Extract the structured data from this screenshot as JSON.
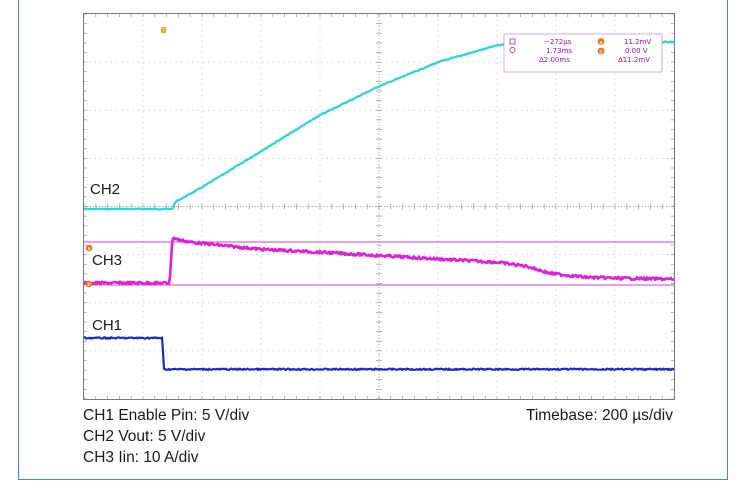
{
  "chart_data": {
    "type": "line",
    "title": "",
    "xlabel": "",
    "ylabel": "",
    "x_divisions": 10,
    "y_divisions": 8,
    "grid": true,
    "timebase": "Timebase: 200 µs/div",
    "channel_scales": [
      "CH1 Enable Pin: 5 V/div",
      "CH2 Vout: 5 V/div",
      "CH3 Iin: 10 A/div"
    ],
    "series": [
      {
        "name": "CH2",
        "color": "#2ad4d8",
        "x": [
          0,
          1.5,
          1.55,
          2.0,
          3.0,
          4.0,
          5.0,
          6.0,
          7.0,
          7.4,
          8.0,
          9.0,
          10.0
        ],
        "y": [
          0,
          0,
          0.15,
          0.45,
          1.2,
          1.95,
          2.55,
          3.05,
          3.4,
          3.47,
          3.47,
          3.47,
          3.47
        ]
      },
      {
        "name": "CH3",
        "color": "#e020d8",
        "x": [
          0,
          1.45,
          1.5,
          1.6,
          1.8,
          2.5,
          3.0,
          4.0,
          5.0,
          6.0,
          7.0,
          7.5,
          7.9,
          8.5,
          9.0,
          10.0
        ],
        "y": [
          0,
          0,
          0.95,
          0.9,
          0.85,
          0.76,
          0.7,
          0.64,
          0.57,
          0.5,
          0.43,
          0.35,
          0.2,
          0.12,
          0.1,
          0.08
        ]
      },
      {
        "name": "CH1",
        "color": "#1a2fc0",
        "x": [
          0,
          1.33,
          1.35,
          10.0
        ],
        "y": [
          0,
          0,
          -0.65,
          -0.65
        ]
      }
    ],
    "channel_labels": [
      "CH2",
      "CH3",
      "CH1"
    ],
    "measurements": {
      "cursor1_time": "−272µs",
      "cursor2_time": "1.73ms",
      "delta_time": "Δ2.00ms",
      "cursor_a_value": "11.2mV",
      "cursor_b_value": "0.00 V",
      "delta_value": "Δ11.2mV"
    },
    "cursor_markers": {
      "trigger": "T",
      "a": "a",
      "b": "b"
    }
  }
}
